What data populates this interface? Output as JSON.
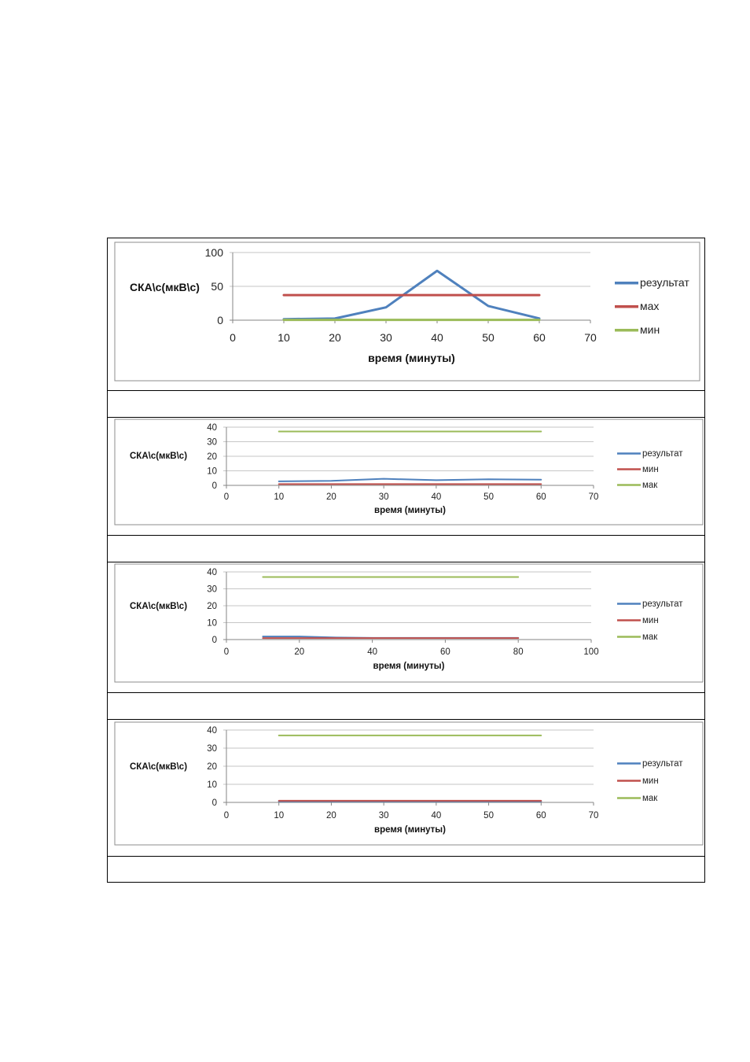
{
  "chart_data": [
    {
      "type": "line",
      "ylabel": "СКА\\с(мкВ\\с)",
      "xlabel": "время (минуты)",
      "xlim": [
        0,
        70
      ],
      "xticks": [
        0,
        10,
        20,
        30,
        40,
        50,
        60,
        70
      ],
      "ylim": [
        0,
        100
      ],
      "yticks": [
        0,
        50,
        100
      ],
      "legend_position": "right",
      "series": [
        {
          "name": "результат",
          "color": "#4f81bd",
          "x": [
            10,
            20,
            30,
            40,
            50,
            60
          ],
          "y": [
            1.5,
            2.5,
            19,
            73,
            21,
            2.5
          ]
        },
        {
          "name": "мах",
          "color": "#c0504d",
          "x": [
            10,
            60
          ],
          "y": [
            37,
            37
          ]
        },
        {
          "name": "мин",
          "color": "#9bbb59",
          "x": [
            10,
            60
          ],
          "y": [
            0.5,
            0.5
          ]
        }
      ]
    },
    {
      "type": "line",
      "ylabel": "СКА\\с(мкВ\\с)",
      "xlabel": "время (минуты)",
      "xlim": [
        0,
        70
      ],
      "xticks": [
        0,
        10,
        20,
        30,
        40,
        50,
        60,
        70
      ],
      "ylim": [
        0,
        40
      ],
      "yticks": [
        0,
        10,
        20,
        30,
        40
      ],
      "legend_position": "right",
      "series": [
        {
          "name": "результат",
          "color": "#4f81bd",
          "x": [
            10,
            20,
            30,
            40,
            50,
            60
          ],
          "y": [
            2.8,
            3.1,
            4.5,
            3.6,
            4.2,
            3.9
          ]
        },
        {
          "name": "мин",
          "color": "#c0504d",
          "x": [
            10,
            20,
            30,
            40,
            50,
            60
          ],
          "y": [
            0.9,
            0.9,
            0.9,
            0.9,
            0.9,
            0.9
          ]
        },
        {
          "name": "мак",
          "color": "#9bbb59",
          "x": [
            10,
            60
          ],
          "y": [
            37,
            37
          ]
        }
      ]
    },
    {
      "type": "line",
      "ylabel": "СКА\\с(мкВ\\с)",
      "xlabel": "время (минуты)",
      "xlim": [
        0,
        100
      ],
      "xticks": [
        0,
        20,
        40,
        60,
        80,
        100
      ],
      "ylim": [
        0,
        40
      ],
      "yticks": [
        0,
        10,
        20,
        30,
        40
      ],
      "legend_position": "right",
      "series": [
        {
          "name": "результат",
          "color": "#4f81bd",
          "x": [
            10,
            20,
            30,
            40,
            50,
            60,
            70,
            80
          ],
          "y": [
            1.8,
            1.8,
            1.2,
            1.0,
            1.0,
            1.0,
            1.0,
            1.0
          ]
        },
        {
          "name": "мин",
          "color": "#c0504d",
          "x": [
            10,
            20,
            30,
            40,
            50,
            60,
            70,
            80
          ],
          "y": [
            0.9,
            0.9,
            0.9,
            0.9,
            0.9,
            0.9,
            0.9,
            0.9
          ]
        },
        {
          "name": "мак",
          "color": "#9bbb59",
          "x": [
            10,
            80
          ],
          "y": [
            37,
            37
          ]
        }
      ]
    },
    {
      "type": "line",
      "ylabel": "СКА\\с(мкВ\\с)",
      "xlabel": "время (минуты)",
      "xlim": [
        0,
        70
      ],
      "xticks": [
        0,
        10,
        20,
        30,
        40,
        50,
        60,
        70
      ],
      "ylim": [
        0,
        40
      ],
      "yticks": [
        0,
        10,
        20,
        30,
        40
      ],
      "legend_position": "right",
      "series": [
        {
          "name": "результат",
          "color": "#4f81bd",
          "x": [
            10,
            20,
            30,
            40,
            50,
            60
          ],
          "y": [
            0.6,
            0.6,
            0.6,
            0.6,
            0.6,
            0.6
          ]
        },
        {
          "name": "мин",
          "color": "#c0504d",
          "x": [
            10,
            20,
            30,
            40,
            50,
            60
          ],
          "y": [
            0.9,
            0.9,
            0.9,
            0.9,
            0.9,
            0.9
          ]
        },
        {
          "name": "мак",
          "color": "#9bbb59",
          "x": [
            10,
            60
          ],
          "y": [
            37,
            37
          ]
        }
      ]
    }
  ]
}
